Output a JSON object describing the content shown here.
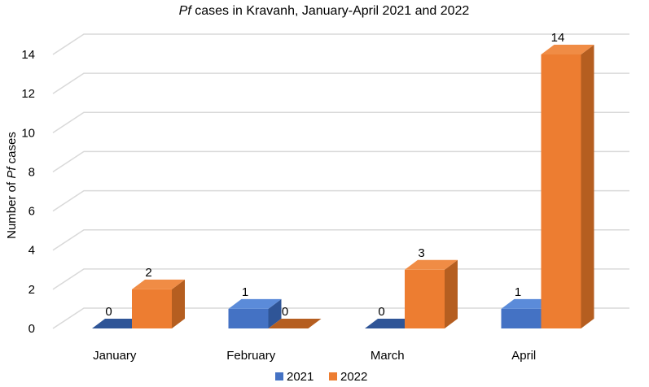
{
  "chart_data": {
    "type": "bar",
    "title_italic": "Pf",
    "title_rest": " cases in Kravanh, January-April 2021 and 2022",
    "ylabel_prefix": "Number of ",
    "ylabel_italic": "Pf",
    "ylabel_suffix": " cases",
    "xlabel": "",
    "categories": [
      "January",
      "February",
      "March",
      "April"
    ],
    "yticks": [
      "0",
      "2",
      "4",
      "6",
      "8",
      "10",
      "12",
      "14"
    ],
    "ylim": [
      0,
      14
    ],
    "grid": true,
    "legend_position": "bottom",
    "series": [
      {
        "name": "2021",
        "values": [
          0,
          1,
          0,
          1
        ],
        "labels": [
          "0",
          "1",
          "0",
          "1"
        ],
        "color": "#4472C4",
        "top_color": "#5B8BD9",
        "side_color": "#2F5597"
      },
      {
        "name": "2022",
        "values": [
          2,
          0,
          3,
          14
        ],
        "labels": [
          "2",
          "0",
          "3",
          "14"
        ],
        "color": "#ED7D31",
        "top_color": "#F08C45",
        "side_color": "#B55E20"
      }
    ]
  }
}
